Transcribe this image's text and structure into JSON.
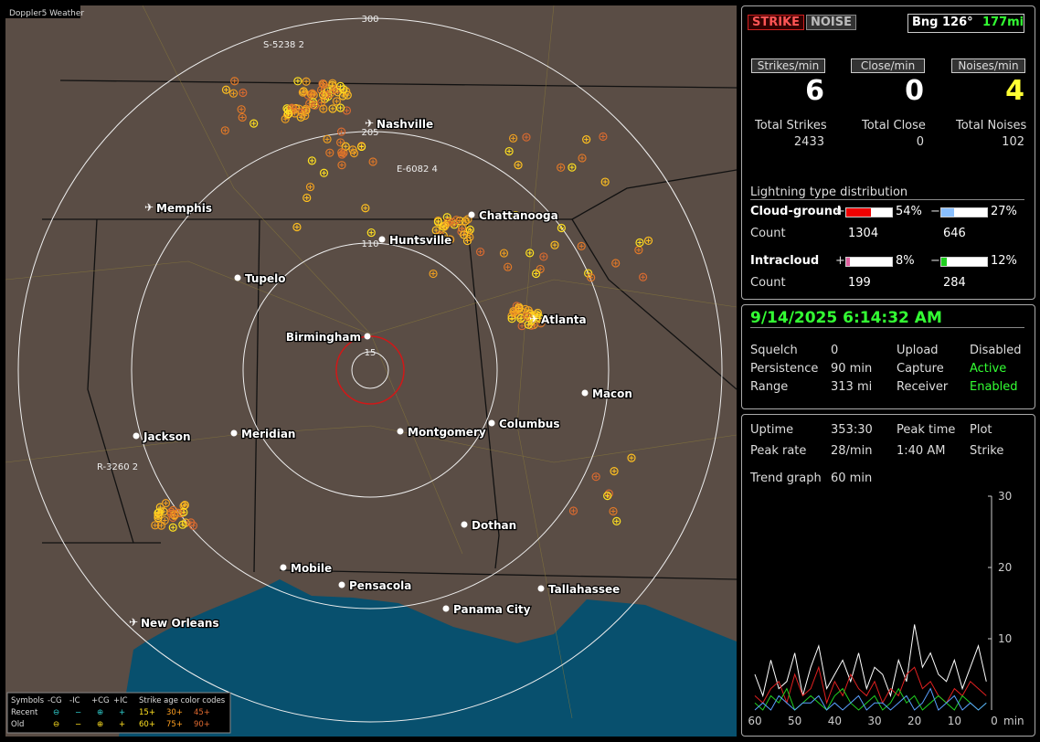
{
  "app_title": "Doppler5 Weather",
  "map": {
    "range_labels": [
      "300",
      "205",
      "110",
      "15"
    ],
    "cities": [
      {
        "name": "Nashville",
        "airport": true
      },
      {
        "name": "Memphis",
        "airport": true
      },
      {
        "name": "Chattanooga",
        "airport": false
      },
      {
        "name": "Huntsville",
        "airport": false
      },
      {
        "name": "Tupelo",
        "airport": false
      },
      {
        "name": "Birmingham",
        "airport": false
      },
      {
        "name": "Atlanta",
        "airport": true
      },
      {
        "name": "Macon",
        "airport": false
      },
      {
        "name": "Jackson",
        "airport": false
      },
      {
        "name": "Meridian",
        "airport": false
      },
      {
        "name": "Montgomery",
        "airport": false
      },
      {
        "name": "Columbus",
        "airport": false
      },
      {
        "name": "Dothan",
        "airport": false
      },
      {
        "name": "Mobile",
        "airport": false
      },
      {
        "name": "Pensacola",
        "airport": false
      },
      {
        "name": "Panama City",
        "airport": false
      },
      {
        "name": "Tallahassee",
        "airport": false
      },
      {
        "name": "New Orleans",
        "airport": true
      }
    ],
    "storm_ids": [
      "S-5238 2",
      "E-6082 4",
      "R-3260 2"
    ]
  },
  "legend": {
    "symbols_title": "Symbols",
    "symbol_names": [
      "-CG",
      "-IC",
      "+CG",
      "+IC"
    ],
    "age_title": "Strike age color codes",
    "row_names": [
      "Recent",
      "Old"
    ],
    "symbols": [
      "⊖",
      "−",
      "⊕",
      "+"
    ],
    "recent_ages": [
      "15+",
      "30+",
      "45+"
    ],
    "old_ages": [
      "60+",
      "75+",
      "90+"
    ]
  },
  "panel": {
    "buttons": [
      "STRIKE",
      "NOISE"
    ],
    "bearing": "Bng 126°",
    "distance": "177mi",
    "rates": [
      {
        "label": "Strikes/min",
        "value": "6"
      },
      {
        "label": "Close/min",
        "value": "0"
      },
      {
        "label": "Noises/min",
        "value": "4"
      }
    ],
    "totals": [
      {
        "label": "Total Strikes",
        "value": "2433"
      },
      {
        "label": "Total Close",
        "value": "0"
      },
      {
        "label": "Total Noises",
        "value": "102"
      }
    ],
    "distribution": {
      "title": "Lightning type distribution",
      "count_label": "Count",
      "rows": [
        {
          "name": "Cloud-ground",
          "plus_pct": 54,
          "plus_label": "54%",
          "minus_pct": 27,
          "minus_label": "27%",
          "plus_count": "1304",
          "minus_count": "646"
        },
        {
          "name": "Intracloud",
          "plus_pct": 8,
          "plus_label": "8%",
          "minus_pct": 12,
          "minus_label": "12%",
          "plus_count": "199",
          "minus_count": "284"
        }
      ],
      "plus": "+",
      "minus": "−"
    },
    "datetime": "9/14/2025 6:14:32 AM",
    "status": [
      [
        "Squelch",
        "0",
        "Upload",
        "Disabled"
      ],
      [
        "Persistence",
        "90 min",
        "Capture",
        "Active"
      ],
      [
        "Range",
        "313 mi",
        "Receiver",
        "Enabled"
      ]
    ],
    "stats": [
      [
        "Uptime",
        "353:30",
        "Peak time",
        "Plot"
      ],
      [
        "Peak rate",
        "28/min",
        "1:40 AM",
        "Strike"
      ]
    ],
    "trend_label": "Trend graph",
    "trend_window": "60 min"
  },
  "trend": {
    "type": "line",
    "ylim": [
      0,
      30
    ],
    "yticks": [
      10,
      20,
      30
    ],
    "xlim": [
      60,
      0
    ],
    "xticks": [
      60,
      50,
      40,
      30,
      20,
      10,
      0
    ],
    "x_unit": "min",
    "x": [
      60,
      58,
      56,
      54,
      52,
      50,
      48,
      46,
      44,
      42,
      40,
      38,
      36,
      34,
      32,
      30,
      28,
      26,
      24,
      22,
      20,
      18,
      16,
      14,
      12,
      10,
      8,
      6,
      4,
      2
    ],
    "series": [
      {
        "color": "#ffffff",
        "values": [
          5,
          2,
          7,
          3,
          4,
          8,
          2,
          6,
          9,
          3,
          5,
          7,
          4,
          8,
          3,
          6,
          5,
          2,
          7,
          4,
          12,
          6,
          8,
          5,
          4,
          7,
          3,
          6,
          9,
          4
        ]
      },
      {
        "color": "#e02020",
        "values": [
          2,
          1,
          3,
          4,
          1,
          5,
          2,
          3,
          6,
          1,
          4,
          2,
          5,
          3,
          2,
          4,
          1,
          3,
          2,
          5,
          6,
          3,
          4,
          2,
          1,
          3,
          2,
          4,
          3,
          2
        ]
      },
      {
        "color": "#20d020",
        "values": [
          1,
          0,
          2,
          1,
          3,
          0,
          1,
          2,
          1,
          0,
          2,
          3,
          1,
          0,
          1,
          2,
          0,
          1,
          3,
          1,
          2,
          0,
          1,
          2,
          1,
          0,
          2,
          1,
          0,
          1
        ]
      },
      {
        "color": "#5aa0ff",
        "values": [
          0,
          1,
          0,
          2,
          1,
          0,
          1,
          1,
          2,
          0,
          1,
          0,
          1,
          2,
          0,
          1,
          1,
          0,
          1,
          2,
          0,
          1,
          3,
          0,
          1,
          2,
          0,
          1,
          0,
          1
        ]
      }
    ]
  }
}
